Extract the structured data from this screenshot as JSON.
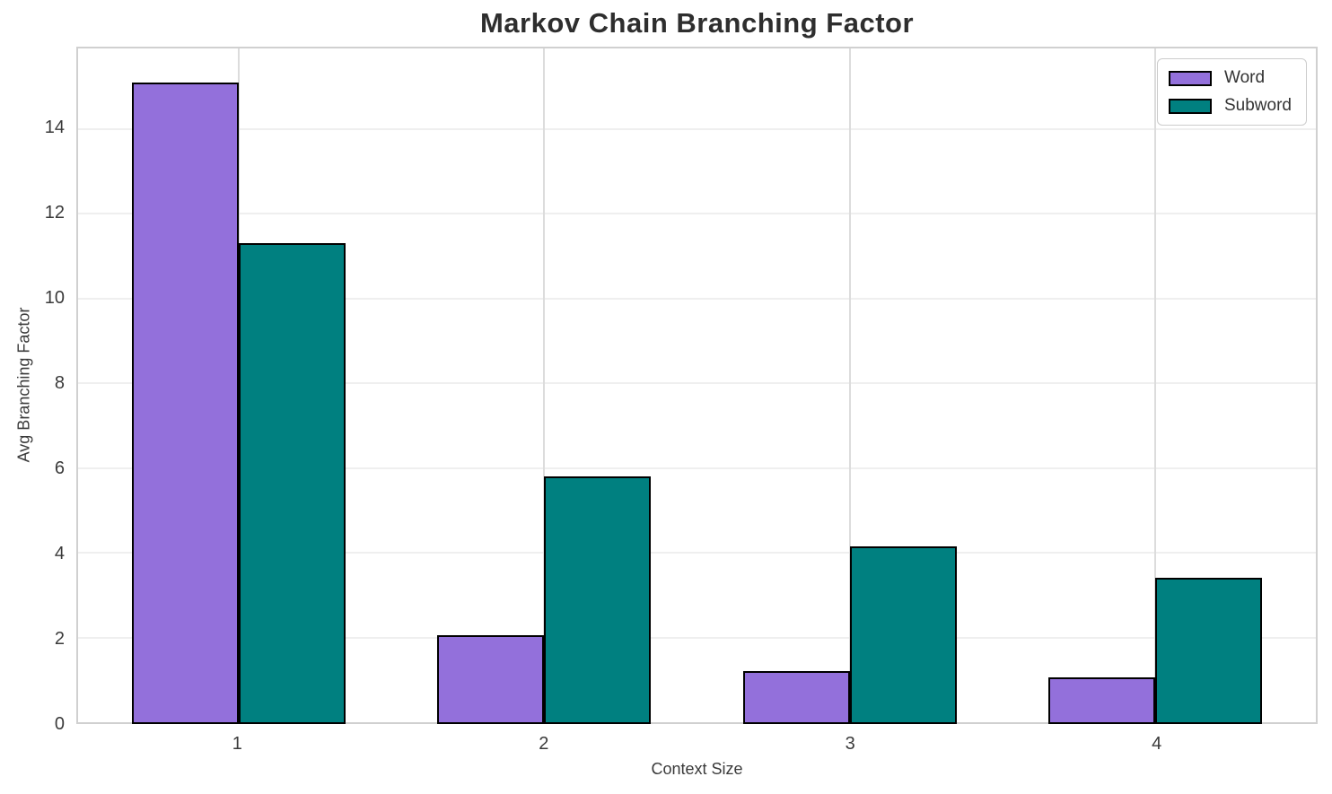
{
  "chart_data": {
    "type": "bar",
    "title": "Markov Chain Branching Factor",
    "xlabel": "Context Size",
    "ylabel": "Avg Branching Factor",
    "categories": [
      "1",
      "2",
      "3",
      "4"
    ],
    "series": [
      {
        "name": "Word",
        "color": "#9370DB",
        "values": [
          15.1,
          2.05,
          1.2,
          1.05
        ]
      },
      {
        "name": "Subword",
        "color": "#008080",
        "values": [
          11.3,
          5.8,
          4.15,
          3.4
        ]
      }
    ],
    "bar_width": 0.35,
    "edge_color": "#000000",
    "ylim": [
      0,
      15.9
    ],
    "yticks": [
      0,
      2,
      4,
      6,
      8,
      10,
      12,
      14
    ],
    "grid": true,
    "legend_position": "upper right"
  }
}
